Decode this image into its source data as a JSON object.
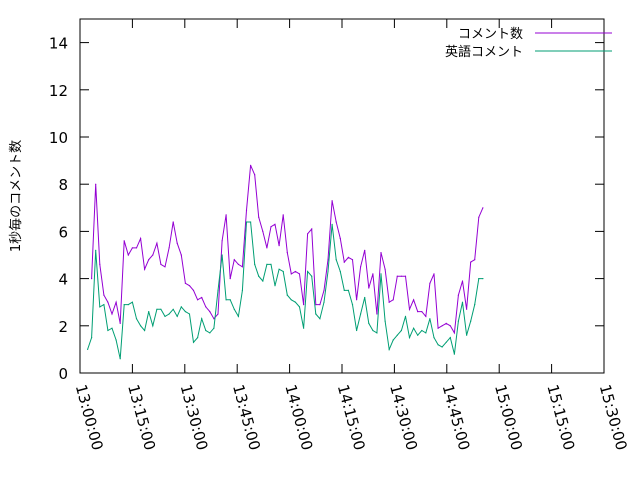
{
  "chart_data": {
    "type": "line",
    "title": "",
    "xlabel": "",
    "ylabel": "1秒毎のコメント数",
    "ylim": [
      0,
      15
    ],
    "yticks": [
      0,
      2,
      4,
      6,
      8,
      10,
      12,
      14
    ],
    "xlim": [
      "13:00:00",
      "15:30:00"
    ],
    "xticks": [
      "13:00:00",
      "13:15:00",
      "13:30:00",
      "13:45:00",
      "14:00:00",
      "14:15:00",
      "14:30:00",
      "14:45:00",
      "15:00:00",
      "15:15:00",
      "15:30:00"
    ],
    "legend": "top-right",
    "series": [
      {
        "name": "コメント数",
        "color": "#9400d3",
        "points": [
          [
            "13:03:20",
            4.0
          ],
          [
            "13:04:30",
            8.0
          ],
          [
            "13:05:40",
            4.6
          ],
          [
            "13:06:50",
            3.3
          ],
          [
            "13:08:00",
            3.0
          ],
          [
            "13:09:10",
            2.5
          ],
          [
            "13:10:20",
            3.0
          ],
          [
            "13:11:30",
            2.1
          ],
          [
            "13:12:40",
            5.6
          ],
          [
            "13:13:50",
            5.0
          ],
          [
            "13:15:00",
            5.3
          ],
          [
            "13:16:10",
            5.3
          ],
          [
            "13:17:20",
            5.7
          ],
          [
            "13:18:30",
            4.4
          ],
          [
            "13:19:40",
            4.8
          ],
          [
            "13:20:50",
            5.0
          ],
          [
            "13:22:00",
            5.5
          ],
          [
            "13:23:10",
            4.6
          ],
          [
            "13:24:20",
            4.5
          ],
          [
            "13:25:30",
            5.3
          ],
          [
            "13:26:40",
            6.4
          ],
          [
            "13:27:50",
            5.5
          ],
          [
            "13:29:00",
            5.0
          ],
          [
            "13:30:10",
            3.8
          ],
          [
            "13:31:20",
            3.7
          ],
          [
            "13:32:30",
            3.5
          ],
          [
            "13:33:40",
            3.1
          ],
          [
            "13:34:50",
            3.2
          ],
          [
            "13:36:00",
            2.8
          ],
          [
            "13:37:10",
            2.6
          ],
          [
            "13:38:20",
            2.3
          ],
          [
            "13:39:30",
            2.5
          ],
          [
            "13:40:40",
            5.6
          ],
          [
            "13:41:50",
            6.7
          ],
          [
            "13:43:00",
            4.0
          ],
          [
            "13:44:10",
            4.8
          ],
          [
            "13:45:20",
            4.6
          ],
          [
            "13:46:30",
            4.5
          ],
          [
            "13:47:40",
            6.9
          ],
          [
            "13:48:50",
            8.8
          ],
          [
            "13:50:00",
            8.4
          ],
          [
            "13:51:10",
            6.6
          ],
          [
            "13:52:20",
            6.0
          ],
          [
            "13:53:30",
            5.3
          ],
          [
            "13:54:40",
            6.2
          ],
          [
            "13:55:50",
            6.3
          ],
          [
            "13:57:00",
            5.4
          ],
          [
            "13:58:10",
            6.7
          ],
          [
            "13:59:20",
            5.1
          ],
          [
            "14:00:30",
            4.2
          ],
          [
            "14:01:40",
            4.3
          ],
          [
            "14:02:50",
            4.2
          ],
          [
            "14:04:00",
            2.9
          ],
          [
            "14:05:10",
            5.9
          ],
          [
            "14:06:20",
            6.1
          ],
          [
            "14:07:30",
            2.9
          ],
          [
            "14:08:40",
            2.9
          ],
          [
            "14:09:50",
            3.5
          ],
          [
            "14:11:00",
            4.8
          ],
          [
            "14:12:10",
            7.3
          ],
          [
            "14:13:20",
            6.4
          ],
          [
            "14:14:30",
            5.7
          ],
          [
            "14:15:40",
            4.7
          ],
          [
            "14:16:50",
            4.9
          ],
          [
            "14:18:00",
            4.8
          ],
          [
            "14:19:10",
            3.1
          ],
          [
            "14:20:20",
            4.5
          ],
          [
            "14:21:30",
            5.2
          ],
          [
            "14:22:40",
            3.6
          ],
          [
            "14:23:50",
            4.2
          ],
          [
            "14:25:00",
            2.5
          ],
          [
            "14:26:10",
            5.1
          ],
          [
            "14:27:20",
            4.4
          ],
          [
            "14:28:30",
            3.0
          ],
          [
            "14:29:40",
            3.1
          ],
          [
            "14:30:50",
            4.1
          ],
          [
            "14:32:00",
            4.1
          ],
          [
            "14:33:10",
            4.1
          ],
          [
            "14:34:20",
            2.7
          ],
          [
            "14:35:30",
            3.1
          ],
          [
            "14:36:40",
            2.6
          ],
          [
            "14:37:50",
            2.6
          ],
          [
            "14:39:00",
            2.4
          ],
          [
            "14:40:10",
            3.8
          ],
          [
            "14:41:20",
            4.2
          ],
          [
            "14:42:30",
            1.9
          ],
          [
            "14:43:40",
            2.0
          ],
          [
            "14:44:50",
            2.1
          ],
          [
            "14:46:00",
            2.0
          ],
          [
            "14:47:10",
            1.7
          ],
          [
            "14:48:20",
            3.3
          ],
          [
            "14:49:30",
            3.9
          ],
          [
            "14:50:40",
            2.7
          ],
          [
            "14:51:50",
            4.7
          ],
          [
            "14:53:00",
            4.8
          ],
          [
            "14:54:10",
            6.6
          ],
          [
            "14:55:20",
            7.0
          ]
        ]
      },
      {
        "name": "英語コメント",
        "color": "#009e73",
        "points": [
          [
            "13:02:10",
            1.0
          ],
          [
            "13:03:20",
            1.5
          ],
          [
            "13:04:30",
            5.2
          ],
          [
            "13:05:40",
            2.8
          ],
          [
            "13:06:50",
            2.9
          ],
          [
            "13:08:00",
            1.8
          ],
          [
            "13:09:10",
            1.9
          ],
          [
            "13:10:20",
            1.4
          ],
          [
            "13:11:30",
            0.6
          ],
          [
            "13:12:40",
            2.9
          ],
          [
            "13:13:50",
            2.9
          ],
          [
            "13:15:00",
            3.0
          ],
          [
            "13:16:10",
            2.3
          ],
          [
            "13:17:20",
            2.0
          ],
          [
            "13:18:30",
            1.8
          ],
          [
            "13:19:40",
            2.6
          ],
          [
            "13:20:50",
            2.0
          ],
          [
            "13:22:00",
            2.7
          ],
          [
            "13:23:10",
            2.7
          ],
          [
            "13:24:20",
            2.4
          ],
          [
            "13:25:30",
            2.5
          ],
          [
            "13:26:40",
            2.7
          ],
          [
            "13:27:50",
            2.4
          ],
          [
            "13:29:00",
            2.8
          ],
          [
            "13:30:10",
            2.6
          ],
          [
            "13:31:20",
            2.5
          ],
          [
            "13:32:30",
            1.3
          ],
          [
            "13:33:40",
            1.5
          ],
          [
            "13:34:50",
            2.3
          ],
          [
            "13:36:00",
            1.8
          ],
          [
            "13:37:10",
            1.7
          ],
          [
            "13:38:20",
            1.9
          ],
          [
            "13:39:30",
            3.5
          ],
          [
            "13:40:40",
            5.0
          ],
          [
            "13:41:50",
            3.1
          ],
          [
            "13:43:00",
            3.1
          ],
          [
            "13:44:10",
            2.7
          ],
          [
            "13:45:20",
            2.4
          ],
          [
            "13:46:30",
            3.5
          ],
          [
            "13:47:40",
            6.4
          ],
          [
            "13:48:50",
            6.4
          ],
          [
            "13:50:00",
            4.6
          ],
          [
            "13:51:10",
            4.1
          ],
          [
            "13:52:20",
            3.9
          ],
          [
            "13:53:30",
            4.6
          ],
          [
            "13:54:40",
            4.6
          ],
          [
            "13:55:50",
            3.7
          ],
          [
            "13:57:00",
            4.4
          ],
          [
            "13:58:10",
            4.3
          ],
          [
            "13:59:20",
            3.3
          ],
          [
            "14:00:30",
            3.1
          ],
          [
            "14:01:40",
            3.0
          ],
          [
            "14:02:50",
            2.8
          ],
          [
            "14:04:00",
            1.9
          ],
          [
            "14:05:10",
            4.3
          ],
          [
            "14:06:20",
            4.1
          ],
          [
            "14:07:30",
            2.5
          ],
          [
            "14:08:40",
            2.3
          ],
          [
            "14:09:50",
            3.0
          ],
          [
            "14:11:00",
            4.3
          ],
          [
            "14:12:10",
            6.3
          ],
          [
            "14:13:20",
            4.8
          ],
          [
            "14:14:30",
            4.3
          ],
          [
            "14:15:40",
            3.5
          ],
          [
            "14:16:50",
            3.5
          ],
          [
            "14:18:00",
            2.9
          ],
          [
            "14:19:10",
            1.8
          ],
          [
            "14:20:20",
            2.5
          ],
          [
            "14:21:30",
            3.2
          ],
          [
            "14:22:40",
            2.1
          ],
          [
            "14:23:50",
            1.8
          ],
          [
            "14:25:00",
            1.7
          ],
          [
            "14:26:10",
            4.2
          ],
          [
            "14:27:20",
            2.2
          ],
          [
            "14:28:30",
            1.0
          ],
          [
            "14:29:40",
            1.4
          ],
          [
            "14:30:50",
            1.6
          ],
          [
            "14:32:00",
            1.8
          ],
          [
            "14:33:10",
            2.4
          ],
          [
            "14:34:20",
            1.5
          ],
          [
            "14:35:30",
            1.9
          ],
          [
            "14:36:40",
            1.6
          ],
          [
            "14:37:50",
            1.8
          ],
          [
            "14:39:00",
            1.7
          ],
          [
            "14:40:10",
            2.3
          ],
          [
            "14:41:20",
            1.5
          ],
          [
            "14:42:30",
            1.2
          ],
          [
            "14:43:40",
            1.1
          ],
          [
            "14:44:50",
            1.3
          ],
          [
            "14:46:00",
            1.5
          ],
          [
            "14:47:10",
            0.8
          ],
          [
            "14:48:20",
            2.2
          ],
          [
            "14:49:30",
            3.0
          ],
          [
            "14:50:40",
            1.6
          ],
          [
            "14:51:50",
            2.2
          ],
          [
            "14:53:00",
            2.9
          ],
          [
            "14:54:10",
            4.0
          ],
          [
            "14:55:20",
            4.0
          ]
        ]
      }
    ]
  }
}
